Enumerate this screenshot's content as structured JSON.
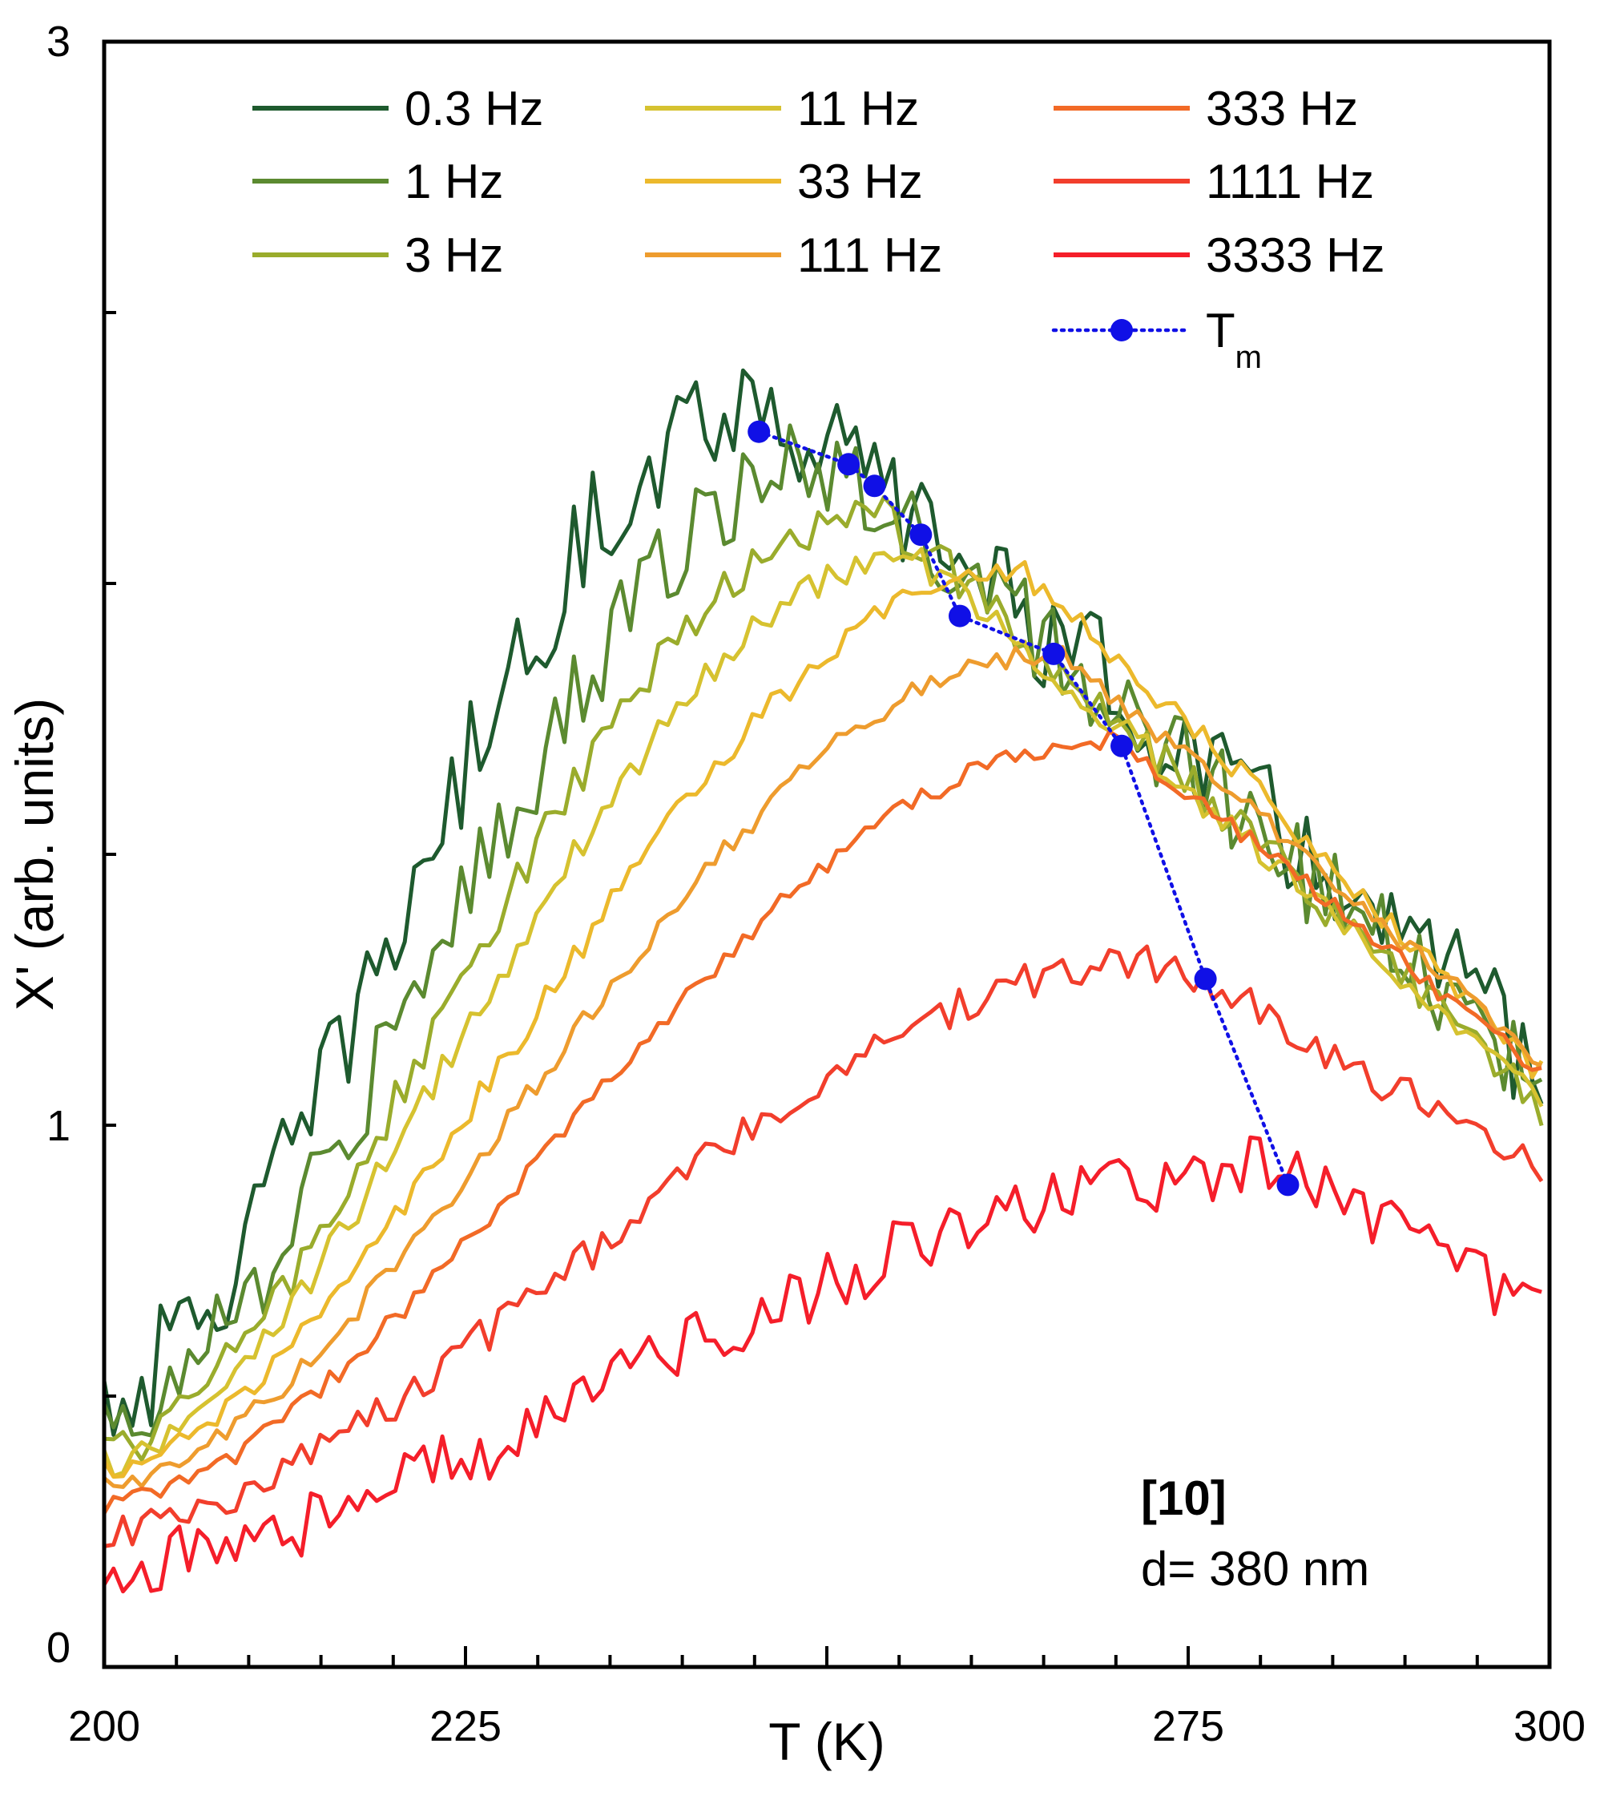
{
  "chart_data": {
    "type": "line",
    "xlabel": "T (K)",
    "ylabel": "X' (arb. units)",
    "xlim": [
      200,
      300
    ],
    "ylim": [
      0,
      3
    ],
    "x_ticks": [
      200,
      225,
      250,
      275,
      300
    ],
    "x_tick_labels": [
      "200",
      "225",
      "",
      "275",
      "300"
    ],
    "y_ticks": [
      0,
      1,
      3
    ],
    "y_tick_labels": [
      "0",
      "1",
      "3"
    ],
    "legend_position": "top",
    "series": [
      {
        "name": "0.3 Hz",
        "color": "#1e5a2e",
        "peak": 2.34,
        "peak_t": 245.5,
        "width": 26,
        "high_tail": 1.1,
        "base": 0.5,
        "noise": 0.11,
        "start": 200,
        "end": 300
      },
      {
        "name": "1 Hz",
        "color": "#5b8a30",
        "peak": 2.22,
        "peak_t": 250.5,
        "width": 25,
        "high_tail": 1.05,
        "base": 0.45,
        "noise": 0.09,
        "start": 200,
        "end": 300
      },
      {
        "name": "3 Hz",
        "color": "#9aac2c",
        "peak": 2.13,
        "peak_t": 253.5,
        "width": 24,
        "high_tail": 1.02,
        "base": 0.4,
        "noise": 0.04,
        "start": 200,
        "end": 300
      },
      {
        "name": "11 Hz",
        "color": "#d6c230",
        "peak": 2.05,
        "peak_t": 256.0,
        "width": 23,
        "high_tail": 1.02,
        "base": 0.38,
        "noise": 0.03,
        "start": 200,
        "end": 300
      },
      {
        "name": "33 Hz",
        "color": "#ecb92c",
        "peak": 2.02,
        "peak_t": 263.5,
        "width": 22,
        "high_tail": 1.08,
        "base": 0.36,
        "noise": 0.025,
        "start": 200,
        "end": 300
      },
      {
        "name": "111 Hz",
        "color": "#ee9c2e",
        "peak": 1.87,
        "peak_t": 266.0,
        "width": 22,
        "high_tail": 1.1,
        "base": 0.33,
        "noise": 0.02,
        "start": 200,
        "end": 300
      },
      {
        "name": "333 Hz",
        "color": "#f26a26",
        "peak": 1.71,
        "peak_t": 270.0,
        "width": 21,
        "high_tail": 1.08,
        "base": 0.3,
        "noise": 0.018,
        "start": 200,
        "end": 300
      },
      {
        "name": "1111 Hz",
        "color": "#f23e2c",
        "peak": 1.3,
        "peak_t": 273.5,
        "width": 20,
        "high_tail": 0.9,
        "base": 0.25,
        "noise": 0.035,
        "start": 200,
        "end": 300
      },
      {
        "name": "3333 Hz",
        "color": "#f51e2a",
        "peak": 0.92,
        "peak_t": 282.0,
        "width": 25,
        "high_tail": 0.65,
        "base": 0.19,
        "noise": 0.06,
        "start": 200,
        "end": 300
      }
    ],
    "tm_series": {
      "name": "T",
      "name_sub": "m",
      "color": "#1010e6",
      "x": [
        245.3,
        251.5,
        253.3,
        256.5,
        259.2,
        265.7,
        270.4,
        276.2,
        281.9
      ],
      "y": [
        2.28,
        2.22,
        2.18,
        2.09,
        1.94,
        1.87,
        1.7,
        1.27,
        0.89
      ]
    },
    "annotation": {
      "ref": "[10]",
      "thickness": "d= 380 nm"
    }
  }
}
